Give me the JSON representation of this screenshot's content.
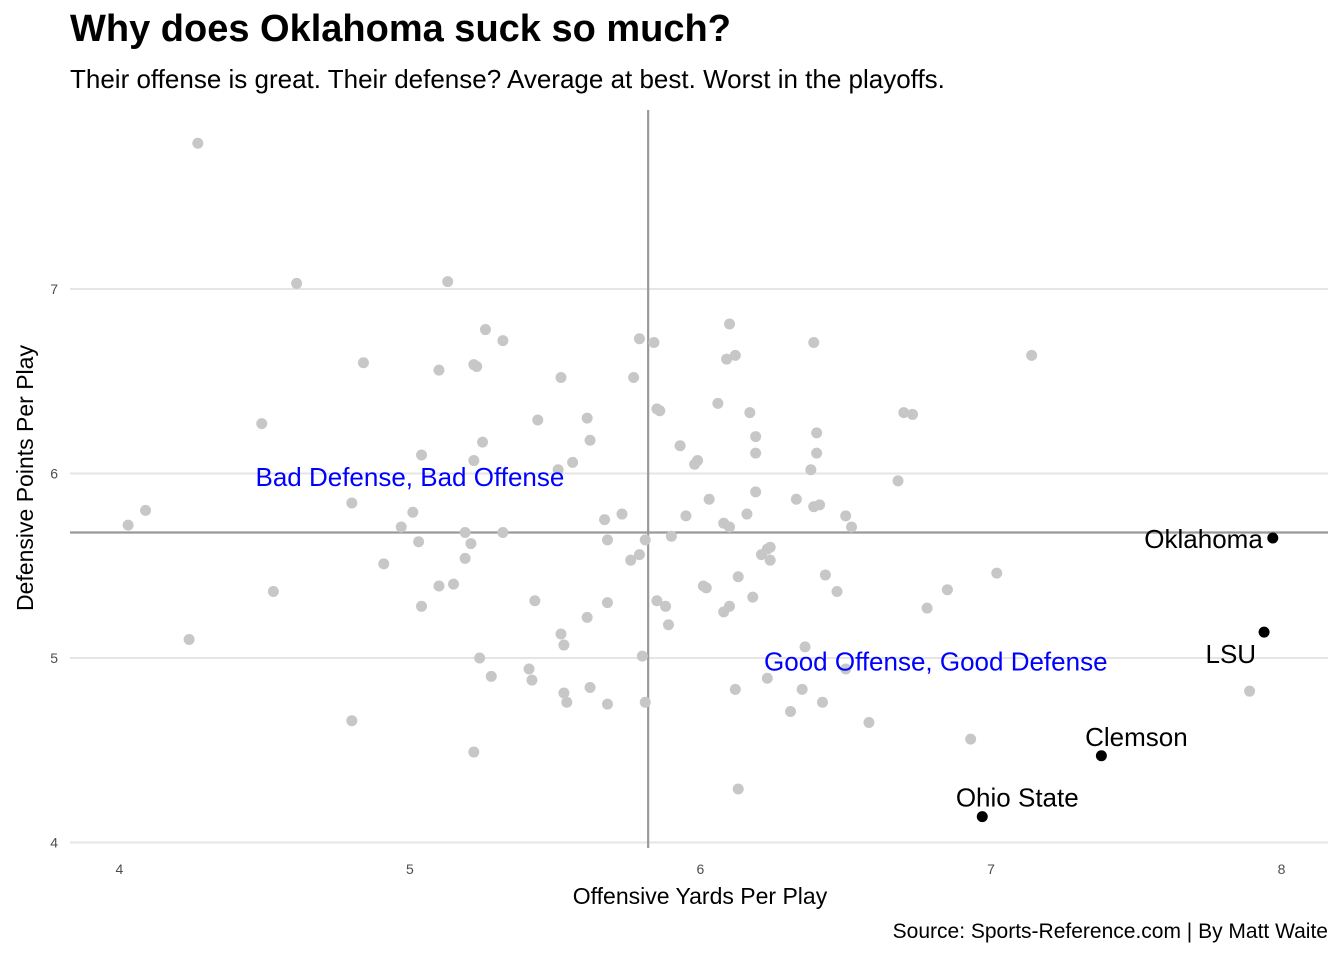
{
  "colors": {
    "other_points": "#c7c7c7",
    "highlight_points": "#000000",
    "quadrant_text": "#0000ff",
    "mean_lines": "#999999",
    "grid": "#e5e5e5"
  },
  "chart_data": {
    "type": "scatter",
    "title": "Why does Oklahoma suck so much?",
    "subtitle": "Their offense is great. Their defense? Average at best. Worst in the playoffs.",
    "caption": "Source: Sports-Reference.com | By Matt Waite",
    "xlabel": "Offensive Yards Per Play",
    "ylabel": "Defensive Points Per Play",
    "xlim": [
      3.83,
      8.16
    ],
    "ylim": [
      3.97,
      7.97
    ],
    "x_ticks": [
      4,
      5,
      6,
      7,
      8
    ],
    "y_ticks": [
      4,
      5,
      6,
      7
    ],
    "x_tick_labels": [
      "4",
      "5",
      "6",
      "7",
      "8"
    ],
    "y_tick_labels": [
      "4",
      "5",
      "6",
      "7"
    ],
    "grid": "horizontal major",
    "reference_lines": {
      "vline_x": 5.82,
      "hline_y": 5.68
    },
    "annotations": [
      {
        "text": "Bad Defense, Bad Offense",
        "x": 5.0,
        "y": 5.98
      },
      {
        "text": "Good Offense, Good Defense",
        "x": 6.81,
        "y": 4.98
      }
    ],
    "highlighted": [
      {
        "team": "Oklahoma",
        "x": 7.97,
        "y": 5.65
      },
      {
        "team": "LSU",
        "x": 7.94,
        "y": 5.14
      },
      {
        "team": "Clemson",
        "x": 7.38,
        "y": 4.47
      },
      {
        "team": "Ohio State",
        "x": 6.97,
        "y": 4.14
      }
    ],
    "other_points": [
      [
        4.27,
        7.79
      ],
      [
        4.61,
        7.03
      ],
      [
        5.13,
        7.04
      ],
      [
        4.03,
        5.72
      ],
      [
        4.09,
        5.8
      ],
      [
        4.24,
        5.1
      ],
      [
        4.49,
        6.27
      ],
      [
        4.53,
        5.36
      ],
      [
        4.8,
        5.84
      ],
      [
        4.84,
        6.6
      ],
      [
        4.8,
        4.66
      ],
      [
        4.91,
        5.51
      ],
      [
        4.97,
        5.71
      ],
      [
        5.01,
        5.79
      ],
      [
        5.03,
        5.63
      ],
      [
        5.04,
        6.1
      ],
      [
        5.04,
        5.28
      ],
      [
        5.1,
        6.56
      ],
      [
        5.1,
        5.39
      ],
      [
        5.15,
        5.4
      ],
      [
        5.19,
        5.68
      ],
      [
        5.19,
        5.54
      ],
      [
        5.21,
        5.62
      ],
      [
        5.22,
        6.59
      ],
      [
        5.23,
        6.58
      ],
      [
        5.22,
        6.07
      ],
      [
        5.25,
        6.17
      ],
      [
        5.26,
        6.78
      ],
      [
        5.24,
        5.0
      ],
      [
        5.28,
        4.9
      ],
      [
        5.22,
        4.49
      ],
      [
        5.32,
        6.72
      ],
      [
        5.32,
        5.68
      ],
      [
        5.41,
        4.94
      ],
      [
        5.42,
        4.88
      ],
      [
        5.43,
        5.31
      ],
      [
        5.44,
        6.29
      ],
      [
        5.52,
        6.52
      ],
      [
        5.51,
        6.02
      ],
      [
        5.56,
        6.06
      ],
      [
        5.52,
        5.13
      ],
      [
        5.53,
        5.07
      ],
      [
        5.53,
        4.81
      ],
      [
        5.54,
        4.76
      ],
      [
        5.61,
        6.3
      ],
      [
        5.62,
        6.18
      ],
      [
        5.61,
        5.22
      ],
      [
        5.62,
        4.84
      ],
      [
        5.67,
        5.75
      ],
      [
        5.68,
        5.64
      ],
      [
        5.68,
        5.3
      ],
      [
        5.68,
        4.75
      ],
      [
        5.73,
        5.78
      ],
      [
        5.76,
        5.53
      ],
      [
        5.77,
        6.52
      ],
      [
        5.79,
        6.73
      ],
      [
        5.79,
        5.56
      ],
      [
        5.81,
        5.64
      ],
      [
        5.8,
        5.01
      ],
      [
        5.81,
        4.76
      ],
      [
        5.84,
        6.71
      ],
      [
        5.85,
        6.35
      ],
      [
        5.86,
        6.34
      ],
      [
        5.85,
        5.31
      ],
      [
        5.88,
        5.28
      ],
      [
        5.89,
        5.18
      ],
      [
        5.9,
        5.66
      ],
      [
        5.93,
        6.15
      ],
      [
        5.95,
        5.77
      ],
      [
        5.98,
        6.05
      ],
      [
        5.99,
        6.07
      ],
      [
        6.01,
        5.39
      ],
      [
        6.02,
        5.38
      ],
      [
        6.03,
        5.86
      ],
      [
        6.06,
        6.38
      ],
      [
        6.08,
        5.73
      ],
      [
        6.08,
        5.25
      ],
      [
        6.09,
        6.62
      ],
      [
        6.1,
        6.81
      ],
      [
        6.1,
        5.71
      ],
      [
        6.1,
        5.28
      ],
      [
        6.12,
        6.64
      ],
      [
        6.12,
        4.83
      ],
      [
        6.13,
        5.44
      ],
      [
        6.13,
        4.29
      ],
      [
        6.16,
        5.78
      ],
      [
        6.17,
        6.33
      ],
      [
        6.18,
        5.33
      ],
      [
        6.19,
        6.11
      ],
      [
        6.19,
        6.2
      ],
      [
        6.19,
        5.9
      ],
      [
        6.21,
        5.56
      ],
      [
        6.23,
        5.59
      ],
      [
        6.23,
        4.89
      ],
      [
        6.24,
        5.6
      ],
      [
        6.24,
        5.53
      ],
      [
        6.31,
        4.71
      ],
      [
        6.33,
        5.86
      ],
      [
        6.35,
        4.83
      ],
      [
        6.36,
        5.06
      ],
      [
        6.38,
        6.02
      ],
      [
        6.39,
        6.71
      ],
      [
        6.4,
        6.22
      ],
      [
        6.39,
        5.82
      ],
      [
        6.4,
        6.11
      ],
      [
        6.41,
        5.83
      ],
      [
        6.42,
        4.76
      ],
      [
        6.43,
        5.45
      ],
      [
        6.47,
        5.36
      ],
      [
        6.5,
        5.77
      ],
      [
        6.5,
        4.94
      ],
      [
        6.52,
        5.71
      ],
      [
        6.58,
        4.65
      ],
      [
        6.68,
        5.96
      ],
      [
        6.7,
        6.33
      ],
      [
        6.73,
        6.32
      ],
      [
        6.78,
        5.27
      ],
      [
        6.85,
        5.37
      ],
      [
        6.93,
        4.56
      ],
      [
        7.02,
        5.46
      ],
      [
        7.14,
        6.64
      ],
      [
        7.89,
        4.82
      ]
    ]
  }
}
